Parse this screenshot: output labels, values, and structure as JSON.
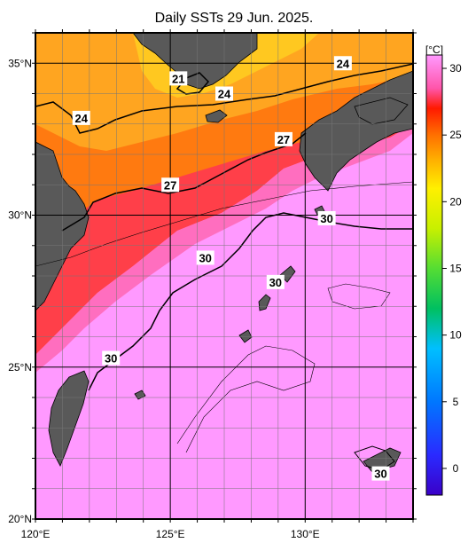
{
  "title": "Daily SSTs 29 Jun. 2025.",
  "map": {
    "lon_range": [
      120,
      134
    ],
    "lat_range": [
      20,
      36
    ],
    "lon_ticks": [
      {
        "value": 120,
        "label": "120°E"
      },
      {
        "value": 125,
        "label": "125°E"
      },
      {
        "value": 130,
        "label": "130°E"
      }
    ],
    "lat_ticks": [
      {
        "value": 35,
        "label": "35°N"
      },
      {
        "value": 30,
        "label": "30°N"
      },
      {
        "value": 25,
        "label": "25°N"
      },
      {
        "value": 20,
        "label": "20°N"
      }
    ],
    "grid_lines": true,
    "land_color": "#595959",
    "contour_labels": [
      {
        "text": "21",
        "lon": 125.3,
        "lat": 34.5
      },
      {
        "text": "24",
        "lon": 127.0,
        "lat": 34.0
      },
      {
        "text": "24",
        "lon": 121.7,
        "lat": 33.2
      },
      {
        "text": "24",
        "lon": 131.4,
        "lat": 35.0
      },
      {
        "text": "27",
        "lon": 129.2,
        "lat": 32.5
      },
      {
        "text": "27",
        "lon": 125.0,
        "lat": 31.0
      },
      {
        "text": "30",
        "lon": 130.8,
        "lat": 29.9
      },
      {
        "text": "30",
        "lon": 126.3,
        "lat": 28.6
      },
      {
        "text": "30",
        "lon": 128.9,
        "lat": 27.8
      },
      {
        "text": "30",
        "lon": 122.8,
        "lat": 25.3
      },
      {
        "text": "30",
        "lon": 132.8,
        "lat": 21.5
      }
    ]
  },
  "colorbar": {
    "unit": "[°C]",
    "min": -2,
    "max": 31,
    "tick_values": [
      0,
      5,
      10,
      15,
      20,
      25,
      30
    ],
    "tick_labels": [
      "0",
      "5",
      "10",
      "15",
      "20",
      "25",
      "30"
    ],
    "stops": [
      {
        "value": -2,
        "color": "#3a00c8"
      },
      {
        "value": 1,
        "color": "#2a2aff"
      },
      {
        "value": 5,
        "color": "#0077ff"
      },
      {
        "value": 9,
        "color": "#00bfff"
      },
      {
        "value": 12,
        "color": "#00c060"
      },
      {
        "value": 15,
        "color": "#55dd33"
      },
      {
        "value": 18,
        "color": "#c8f000"
      },
      {
        "value": 21,
        "color": "#fff000"
      },
      {
        "value": 23,
        "color": "#ffb400"
      },
      {
        "value": 25,
        "color": "#ff7000"
      },
      {
        "value": 27,
        "color": "#ff1a00"
      },
      {
        "value": 28.5,
        "color": "#ff55aa"
      },
      {
        "value": 31,
        "color": "#ff99ff"
      }
    ]
  }
}
